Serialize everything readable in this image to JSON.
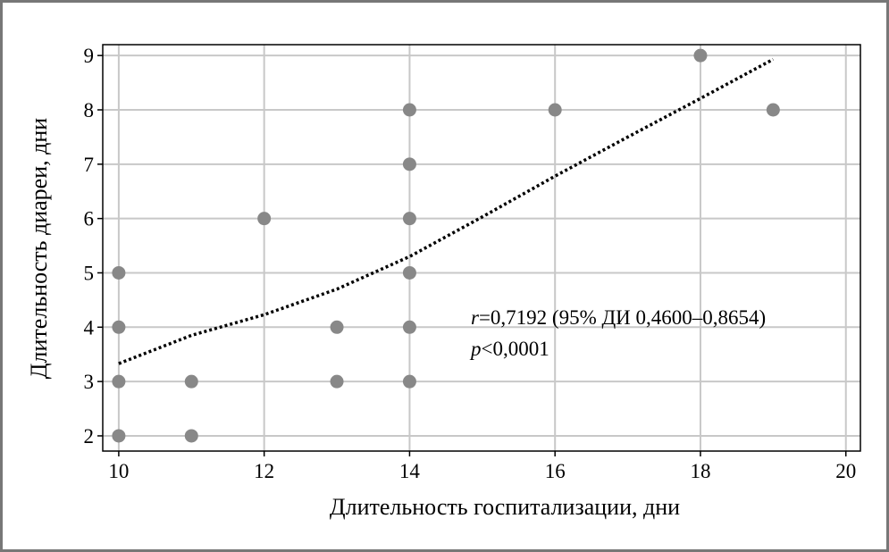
{
  "chart_data": {
    "type": "scatter",
    "x_label": "Длительность госпитализации, дни",
    "y_label": "Длительность диареи, дни",
    "x": [
      10,
      10,
      10,
      10,
      11,
      11,
      12,
      13,
      13,
      14,
      14,
      14,
      14,
      14,
      14,
      16,
      18,
      19
    ],
    "values": [
      2,
      3,
      4,
      5,
      2,
      3,
      6,
      3,
      4,
      3,
      4,
      5,
      6,
      7,
      8,
      8,
      9,
      8
    ],
    "color": "#888888",
    "trend_line": {
      "x": [
        10,
        11,
        12,
        13,
        14,
        15,
        16,
        17,
        18,
        19
      ],
      "y": [
        3.33,
        3.85,
        4.23,
        4.7,
        5.3,
        6.03,
        6.78,
        7.5,
        8.21,
        8.93
      ],
      "color": "#000000"
    },
    "xlim": [
      9.78,
      20.2
    ],
    "ylim": [
      1.72,
      9.2
    ],
    "xticks": [
      10,
      12,
      14,
      16,
      18,
      20
    ],
    "yticks": [
      2,
      3,
      4,
      5,
      6,
      7,
      8,
      9
    ],
    "grid": true,
    "annotation": [
      {
        "italic": "r",
        "text": "=0,7192 (95% ДИ 0,4600–0,8654)"
      },
      {
        "italic": "p",
        "text": "<0,0001"
      }
    ]
  }
}
